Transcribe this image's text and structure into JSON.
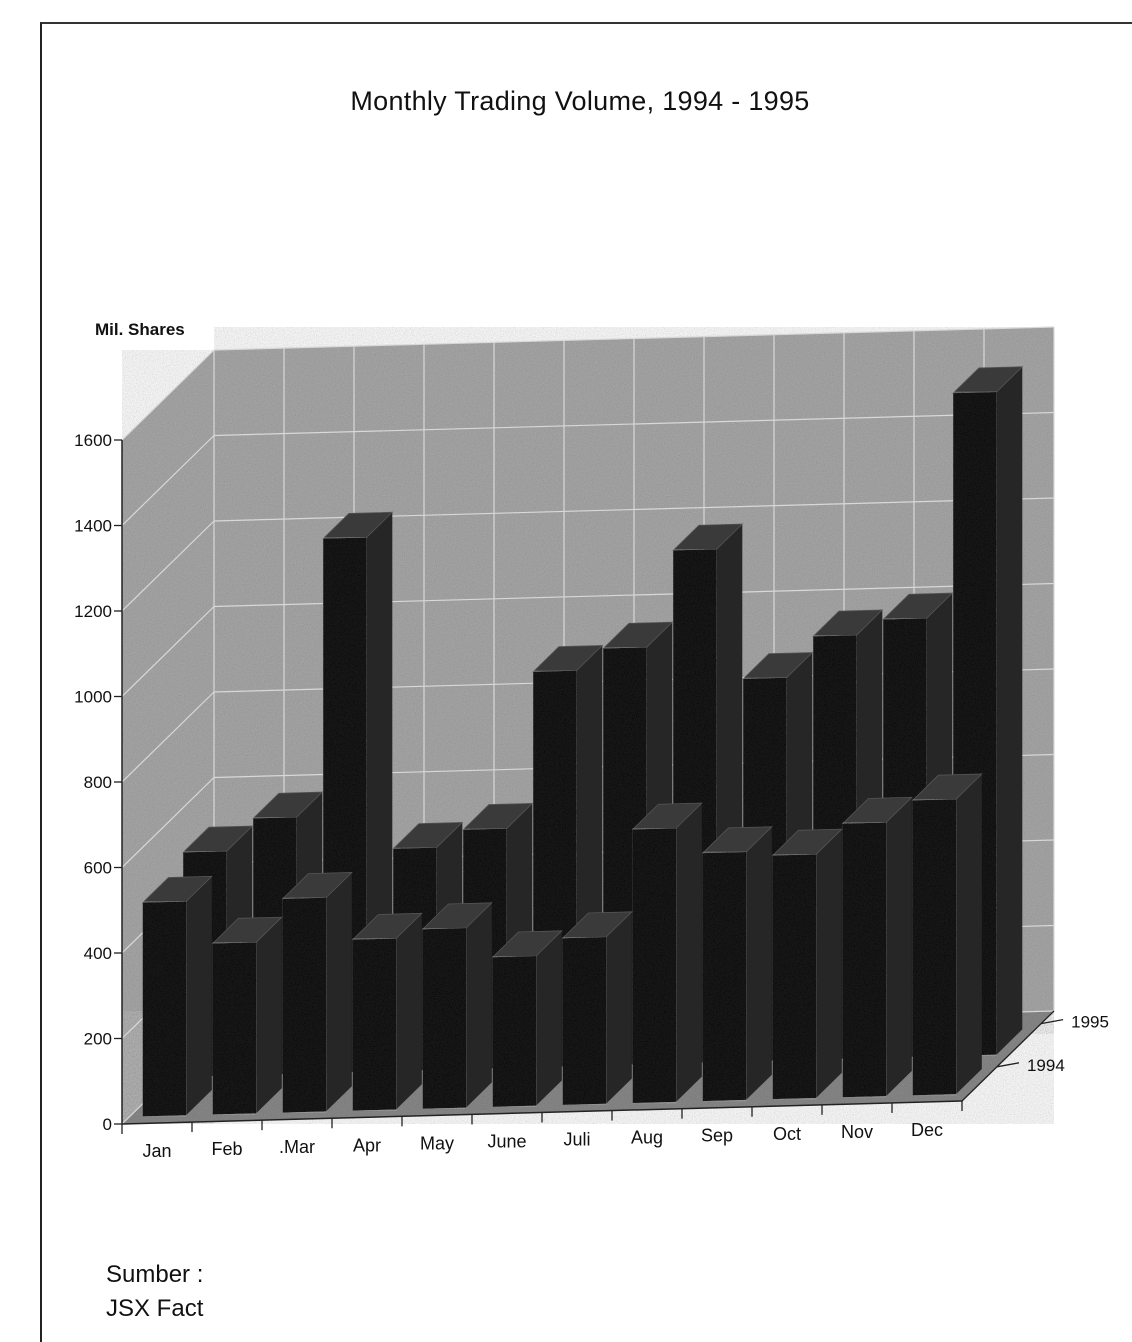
{
  "chart_data": {
    "type": "bar",
    "title": "Monthly Trading Volume, 1994 - 1995",
    "ylabel": "Mil. Shares",
    "xlabel": "",
    "categories": [
      "Jan",
      "Feb",
      ".Mar",
      "Apr",
      "May",
      "June",
      "Juli",
      "Aug",
      "Sep",
      "Oct",
      "Nov",
      "Dec"
    ],
    "series": [
      {
        "name": "1994",
        "values": [
          525,
          600,
          1250,
          520,
          560,
          925,
          975,
          1200,
          895,
          990,
          1025,
          1550
        ]
      },
      {
        "name": "1995",
        "values": [
          500,
          400,
          500,
          400,
          420,
          350,
          390,
          640,
          580,
          570,
          640,
          690
        ]
      }
    ],
    "y_ticks": [
      "0",
      "200",
      "400",
      "600",
      "800",
      "1000",
      "1200",
      "1400",
      "1600"
    ],
    "ylim": [
      0,
      1600
    ],
    "depth_labels": [
      "1995",
      "1994"
    ],
    "grid": true,
    "projection": "3d"
  },
  "source": {
    "label": "Sumber :",
    "name": "JSX Fact"
  },
  "colors": {
    "wall": "#a9a9a9",
    "floor": "#8a8a8a",
    "bar_front": "#141414",
    "bar_side": "#262626",
    "bar_top": "#3a3a3a",
    "grid": "#d8d8d8",
    "axis": "#222222"
  }
}
